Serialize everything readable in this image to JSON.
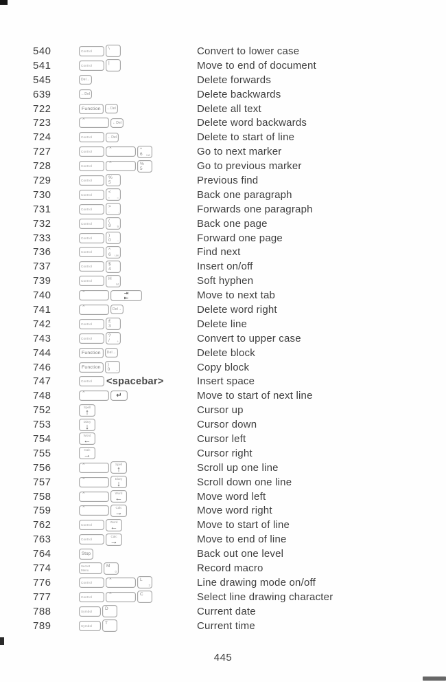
{
  "page": {
    "number": "445"
  },
  "colors": {
    "ink": "#3d3d3d",
    "key_border": "#a6a6a6",
    "key_ink": "#8a8a8a"
  },
  "rows": [
    {
      "code": "540",
      "desc": "Convert to lower case",
      "keys": [
        {
          "k": "mod",
          "c": "ctrl",
          "t": "Control",
          "n": "control-key"
        },
        {
          "k": "sym",
          "top": "\\",
          "n": "backslash-key"
        }
      ]
    },
    {
      "code": "541",
      "desc": "Move to end of document",
      "keys": [
        {
          "k": "mod",
          "c": "ctrl",
          "t": "Control",
          "n": "control-key"
        },
        {
          "k": "sym",
          "top": "|",
          "n": "bar-key"
        }
      ]
    },
    {
      "code": "545",
      "desc": "Delete forwards",
      "keys": [
        {
          "k": "cap",
          "t": "Del→",
          "n": "delete-forward-key"
        }
      ]
    },
    {
      "code": "639",
      "desc": "Delete backwards",
      "keys": [
        {
          "k": "cap",
          "t": "←Del",
          "n": "delete-backward-key"
        }
      ]
    },
    {
      "code": "722",
      "desc": "Delete all text",
      "keys": [
        {
          "k": "mod",
          "c": "fn",
          "t": "Function",
          "n": "function-key"
        },
        {
          "k": "cap",
          "t": "←Del",
          "n": "delete-backward-key"
        }
      ]
    },
    {
      "code": "723",
      "desc": "Delete word backwards",
      "keys": [
        {
          "k": "shift",
          "t": "⌃",
          "n": "shift-key"
        },
        {
          "k": "cap",
          "t": "←Del",
          "n": "delete-backward-key"
        }
      ]
    },
    {
      "code": "724",
      "desc": "Delete to start of line",
      "keys": [
        {
          "k": "mod",
          "c": "ctrl",
          "t": "Control",
          "n": "control-key"
        },
        {
          "k": "cap",
          "t": "←Del",
          "n": "delete-backward-key"
        }
      ]
    },
    {
      "code": "727",
      "desc": "Go to next marker",
      "keys": [
        {
          "k": "mod",
          "c": "ctrl",
          "t": "Control",
          "n": "control-key"
        },
        {
          "k": "shift",
          "t": "⌃",
          "n": "shift-key"
        },
        {
          "k": "sym",
          "top": "^",
          "bot": "6",
          "sub": "uw",
          "n": "caret-6-key"
        }
      ]
    },
    {
      "code": "728",
      "desc": "Go to previous marker",
      "keys": [
        {
          "k": "mod",
          "c": "ctrl",
          "t": "Control",
          "n": "control-key"
        },
        {
          "k": "shift",
          "t": "⌃",
          "n": "shift-key"
        },
        {
          "k": "sym",
          "top": "%",
          "bot": "5",
          "n": "percent-5-key"
        }
      ]
    },
    {
      "code": "729",
      "desc": "Previous find",
      "keys": [
        {
          "k": "mod",
          "c": "ctrl",
          "t": "Control",
          "n": "control-key"
        },
        {
          "k": "sym",
          "top": "%",
          "bot": "5",
          "n": "percent-5-key"
        }
      ]
    },
    {
      "code": "730",
      "desc": "Back one paragraph",
      "keys": [
        {
          "k": "mod",
          "c": "ctrl",
          "t": "Control",
          "n": "control-key"
        },
        {
          "k": "sym",
          "top": "<",
          "bot": ",",
          "sub": "=",
          "n": "comma-key"
        }
      ]
    },
    {
      "code": "731",
      "desc": "Forwards one paragraph",
      "keys": [
        {
          "k": "mod",
          "c": "ctrl",
          "t": "Control",
          "n": "control-key"
        },
        {
          "k": "sym",
          "top": ">",
          "bot": ".",
          "sub": ",",
          "n": "period-key"
        }
      ]
    },
    {
      "code": "732",
      "desc": "Back one page",
      "keys": [
        {
          "k": "mod",
          "c": "ctrl",
          "t": "Control",
          "n": "control-key"
        },
        {
          "k": "sym",
          "top": "(",
          "bot": "9",
          "sub": "9",
          "n": "nine-key"
        }
      ]
    },
    {
      "code": "733",
      "desc": "Forward one page",
      "keys": [
        {
          "k": "mod",
          "c": "ctrl",
          "t": "Control",
          "n": "control-key"
        },
        {
          "k": "sym",
          "top": ")",
          "bot": "0",
          "sub": "–",
          "n": "zero-key"
        }
      ]
    },
    {
      "code": "736",
      "desc": "Find next",
      "keys": [
        {
          "k": "mod",
          "c": "ctrl",
          "t": "Control",
          "n": "control-key"
        },
        {
          "k": "sym",
          "top": "^",
          "bot": "6",
          "sub": "uw",
          "n": "caret-6-key"
        }
      ]
    },
    {
      "code": "737",
      "desc": "Insert on/off",
      "keys": [
        {
          "k": "mod",
          "c": "ctrl",
          "t": "Control",
          "n": "control-key"
        },
        {
          "k": "sym",
          "top": "$",
          "bot": "4",
          "n": "dollar-4-key"
        }
      ]
    },
    {
      "code": "739",
      "desc": "Soft hyphen",
      "keys": [
        {
          "k": "mod",
          "c": "ctrl",
          "t": "Control",
          "n": "control-key"
        },
        {
          "k": "sym",
          "top": "H",
          "sub": "M",
          "n": "h-key"
        }
      ]
    },
    {
      "code": "740",
      "desc": "Move to next tab",
      "keys": [
        {
          "k": "shift",
          "t": "⌃",
          "n": "shift-key"
        },
        {
          "k": "tab",
          "t1": "⇥",
          "t2": "⇤",
          "n": "tab-key"
        }
      ]
    },
    {
      "code": "741",
      "desc": "Delete word right",
      "keys": [
        {
          "k": "shift",
          "t": "⌃",
          "n": "shift-key"
        },
        {
          "k": "cap",
          "t": "Del→",
          "n": "delete-forward-key"
        }
      ]
    },
    {
      "code": "742",
      "desc": "Delete line",
      "keys": [
        {
          "k": "mod",
          "c": "ctrl",
          "t": "Control",
          "n": "control-key"
        },
        {
          "k": "sym",
          "top": "£",
          "bot": "3",
          "n": "pound-3-key"
        }
      ]
    },
    {
      "code": "743",
      "desc": "Convert to upper case",
      "keys": [
        {
          "k": "mod",
          "c": "ctrl",
          "t": "Control",
          "n": "control-key"
        },
        {
          "k": "sym",
          "top": "?",
          "bot": "/",
          "sub": "+",
          "n": "slash-key"
        }
      ]
    },
    {
      "code": "744",
      "desc": "Delete block",
      "keys": [
        {
          "k": "mod",
          "c": "fn",
          "t": "Function",
          "n": "function-key"
        },
        {
          "k": "cap",
          "t": "Del→",
          "n": "delete-forward-key"
        }
      ]
    },
    {
      "code": "746",
      "desc": "Copy block",
      "keys": [
        {
          "k": "mod",
          "c": "fn",
          "t": "Function",
          "n": "function-key"
        },
        {
          "k": "sym",
          "top": ")",
          "bot": "0",
          "sub": "–",
          "n": "zero-key"
        }
      ]
    },
    {
      "code": "747",
      "desc": "Insert space",
      "keys": [
        {
          "k": "mod",
          "c": "ctrl",
          "t": "Control",
          "n": "control-key"
        },
        {
          "k": "text",
          "t": "<spacebar>",
          "n": "spacebar-label"
        }
      ]
    },
    {
      "code": "748",
      "desc": "Move to start of next line",
      "keys": [
        {
          "k": "shift",
          "t": "⌃",
          "n": "shift-key"
        },
        {
          "k": "ret",
          "t": "↵",
          "n": "return-key"
        }
      ]
    },
    {
      "code": "752",
      "desc": "Cursor up",
      "keys": [
        {
          "k": "arrow",
          "w": "Spell",
          "a": "↑",
          "n": "up-arrow-key"
        }
      ]
    },
    {
      "code": "753",
      "desc": "Cursor down",
      "keys": [
        {
          "k": "arrow",
          "w": "Diary",
          "a": "↓",
          "n": "down-arrow-key"
        }
      ]
    },
    {
      "code": "754",
      "desc": "Cursor left",
      "keys": [
        {
          "k": "arrow",
          "w": "Word",
          "a": "←",
          "n": "left-arrow-key"
        }
      ]
    },
    {
      "code": "755",
      "desc": "Cursor right",
      "keys": [
        {
          "k": "arrow",
          "w": "Calc",
          "a": "→",
          "n": "right-arrow-key"
        }
      ]
    },
    {
      "code": "756",
      "desc": "Scroll up one line",
      "keys": [
        {
          "k": "shift",
          "t": "⌃",
          "n": "shift-key"
        },
        {
          "k": "arrow",
          "w": "Spell",
          "a": "↑",
          "n": "up-arrow-key"
        }
      ]
    },
    {
      "code": "757",
      "desc": "Scroll down one line",
      "keys": [
        {
          "k": "shift",
          "t": "⌃",
          "n": "shift-key"
        },
        {
          "k": "arrow",
          "w": "Diary",
          "a": "↓",
          "n": "down-arrow-key"
        }
      ]
    },
    {
      "code": "758",
      "desc": "Move word left",
      "keys": [
        {
          "k": "shift",
          "t": "⌃",
          "n": "shift-key"
        },
        {
          "k": "arrow",
          "w": "Word",
          "a": "←",
          "n": "left-arrow-key"
        }
      ]
    },
    {
      "code": "759",
      "desc": "Move word right",
      "keys": [
        {
          "k": "shift",
          "t": "⌃",
          "n": "shift-key"
        },
        {
          "k": "arrow",
          "w": "Calc",
          "a": "→",
          "n": "right-arrow-key"
        }
      ]
    },
    {
      "code": "762",
      "desc": "Move to start of line",
      "keys": [
        {
          "k": "mod",
          "c": "ctrl",
          "t": "Control",
          "n": "control-key"
        },
        {
          "k": "arrow",
          "w": "Word",
          "a": "←",
          "n": "left-arrow-key"
        }
      ]
    },
    {
      "code": "763",
      "desc": "Move to end of line",
      "keys": [
        {
          "k": "mod",
          "c": "ctrl",
          "t": "Control",
          "n": "control-key"
        },
        {
          "k": "arrow",
          "w": "Calc",
          "a": "→",
          "n": "right-arrow-key"
        }
      ]
    },
    {
      "code": "764",
      "desc": "Back out one level",
      "keys": [
        {
          "k": "mod",
          "c": "stop",
          "t": "Stop",
          "n": "stop-key"
        }
      ]
    },
    {
      "code": "774",
      "desc": "Record macro",
      "keys": [
        {
          "k": "mod2",
          "lines": [
            "Secret",
            "Menu"
          ],
          "n": "secret-menu-key"
        },
        {
          "k": "sym",
          "top": "M",
          "sub": "0",
          "n": "m-key"
        }
      ]
    },
    {
      "code": "776",
      "desc": "Line drawing mode on/off",
      "keys": [
        {
          "k": "mod",
          "c": "ctrl",
          "t": "Control",
          "n": "control-key"
        },
        {
          "k": "shift",
          "t": "⌃",
          "n": "shift-key"
        },
        {
          "k": "sym",
          "top": "L",
          "sub": "3",
          "n": "l-key"
        }
      ]
    },
    {
      "code": "777",
      "desc": "Select line drawing character",
      "keys": [
        {
          "k": "mod",
          "c": "ctrl",
          "t": "Control",
          "n": "control-key"
        },
        {
          "k": "shift",
          "t": "⌃",
          "n": "shift-key"
        },
        {
          "k": "sym",
          "top": "C",
          "n": "c-key"
        }
      ]
    },
    {
      "code": "788",
      "desc": "Current date",
      "keys": [
        {
          "k": "mod",
          "c": "symb",
          "t": "Symbol",
          "n": "symbol-key"
        },
        {
          "k": "sym",
          "top": "D",
          "n": "d-key"
        }
      ]
    },
    {
      "code": "789",
      "desc": "Current time",
      "keys": [
        {
          "k": "mod",
          "c": "symb",
          "t": "Symbol",
          "n": "symbol-key"
        },
        {
          "k": "sym",
          "top": "T",
          "n": "t-key"
        }
      ]
    }
  ]
}
